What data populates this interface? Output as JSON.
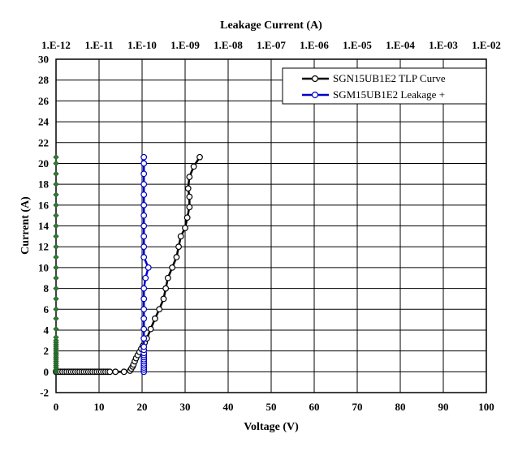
{
  "chart_data": {
    "type": "scatter",
    "xlabel": "Voltage (V)",
    "ylabel": "Current (A)",
    "x2label": "Leakage Current (A)",
    "xlim": [
      0,
      100
    ],
    "ylim": [
      -2,
      30
    ],
    "x_ticks": [
      "0",
      "10",
      "20",
      "30",
      "40",
      "50",
      "60",
      "70",
      "80",
      "90",
      "100"
    ],
    "y_ticks": [
      "-2",
      "0",
      "2",
      "4",
      "6",
      "8",
      "10",
      "12",
      "14",
      "16",
      "18",
      "20",
      "22",
      "24",
      "26",
      "28",
      "30"
    ],
    "x2_ticks": [
      "1.E-12",
      "1.E-11",
      "1.E-10",
      "1.E-09",
      "1.E-08",
      "1.E-07",
      "1.E-06",
      "1.E-05",
      "1.E-04",
      "1.E-03",
      "1.E-02"
    ],
    "x2_scale": "log",
    "x2lim": [
      1e-12,
      0.01
    ],
    "grid": true,
    "legend_position": "top-right",
    "series": [
      {
        "name": "SGN15UB1E2 TLP Curve",
        "axis": "bottom",
        "color": "#000000",
        "marker": "open-circle",
        "points": [
          [
            0,
            0
          ],
          [
            0.5,
            0
          ],
          [
            1,
            0
          ],
          [
            1.5,
            0
          ],
          [
            2,
            0
          ],
          [
            2.5,
            0
          ],
          [
            3,
            0
          ],
          [
            3.5,
            0
          ],
          [
            4,
            0
          ],
          [
            4.5,
            0
          ],
          [
            5,
            0
          ],
          [
            5.5,
            0
          ],
          [
            6,
            0
          ],
          [
            6.5,
            0
          ],
          [
            7,
            0
          ],
          [
            7.5,
            0
          ],
          [
            8,
            0
          ],
          [
            8.5,
            0
          ],
          [
            9,
            0
          ],
          [
            9.5,
            0
          ],
          [
            10,
            0
          ],
          [
            10.5,
            0
          ],
          [
            11,
            0
          ],
          [
            11.5,
            0
          ],
          [
            12,
            0
          ],
          [
            12.5,
            0
          ],
          [
            13.8,
            0
          ],
          [
            15.8,
            0
          ],
          [
            17.2,
            0.1
          ],
          [
            17.5,
            0.3
          ],
          [
            17.8,
            0.5
          ],
          [
            18,
            0.7
          ],
          [
            18.3,
            1.0
          ],
          [
            18.6,
            1.3
          ],
          [
            19,
            1.6
          ],
          [
            19.4,
            1.9
          ],
          [
            19.8,
            2.2
          ],
          [
            20.2,
            2.5
          ],
          [
            20.6,
            2.8
          ],
          [
            21.1,
            3.2
          ],
          [
            22,
            4.1
          ],
          [
            23,
            5.1
          ],
          [
            24,
            6.0
          ],
          [
            25,
            7.0
          ],
          [
            25.5,
            8.0
          ],
          [
            26,
            9.0
          ],
          [
            27,
            10.0
          ],
          [
            28,
            11.0
          ],
          [
            28.5,
            12.0
          ],
          [
            29,
            13.0
          ],
          [
            30,
            13.8
          ],
          [
            30.5,
            14.8
          ],
          [
            31,
            15.8
          ],
          [
            31,
            16.8
          ],
          [
            30.7,
            17.6
          ],
          [
            31,
            18.7
          ],
          [
            32,
            19.7
          ],
          [
            33.4,
            20.6
          ]
        ]
      },
      {
        "name": "SGM15UB1E2 Leakage +",
        "axis": "top",
        "color": "#0000cc",
        "marker": "open-circle",
        "points": [
          [
            1.1e-10,
            0.0
          ],
          [
            1.1e-10,
            0.2
          ],
          [
            1.1e-10,
            0.4
          ],
          [
            1.1e-10,
            0.6
          ],
          [
            1.1e-10,
            0.8
          ],
          [
            1.1e-10,
            1.0
          ],
          [
            1.1e-10,
            1.2
          ],
          [
            1.1e-10,
            1.4
          ],
          [
            1.1e-10,
            1.6
          ],
          [
            1.1e-10,
            1.8
          ],
          [
            1.1e-10,
            2.1
          ],
          [
            1.1e-10,
            2.4
          ],
          [
            1.1e-10,
            3.2
          ],
          [
            1.1e-10,
            4.1
          ],
          [
            1.1e-10,
            5.1
          ],
          [
            1.1e-10,
            6.0
          ],
          [
            1.1e-10,
            7.0
          ],
          [
            1.1e-10,
            8.0
          ],
          [
            1.2e-10,
            9.0
          ],
          [
            1.4e-10,
            10.0
          ],
          [
            1.1e-10,
            11.0
          ],
          [
            1.1e-10,
            12.0
          ],
          [
            1.1e-10,
            13.0
          ],
          [
            1.1e-10,
            14.0
          ],
          [
            1.1e-10,
            15.0
          ],
          [
            1.1e-10,
            16.0
          ],
          [
            1.1e-10,
            17.0
          ],
          [
            1.1e-10,
            18.0
          ],
          [
            1.1e-10,
            19.0
          ],
          [
            1.1e-10,
            20.0
          ],
          [
            1.1e-10,
            20.6
          ]
        ]
      },
      {
        "axis": "bottom",
        "color": "#2e7d32",
        "marker": "filled-diamond",
        "points": [
          [
            0,
            0
          ],
          [
            0,
            0.2
          ],
          [
            0,
            0.4
          ],
          [
            0,
            0.6
          ],
          [
            0,
            0.8
          ],
          [
            0,
            1.0
          ],
          [
            0,
            1.2
          ],
          [
            0,
            1.4
          ],
          [
            0,
            1.6
          ],
          [
            0,
            1.8
          ],
          [
            0,
            2.0
          ],
          [
            0,
            2.2
          ],
          [
            0,
            2.4
          ],
          [
            0,
            2.6
          ],
          [
            0,
            2.8
          ],
          [
            0,
            3.0
          ],
          [
            0,
            3.3
          ],
          [
            0,
            4.1
          ],
          [
            0,
            5.1
          ],
          [
            0,
            6.0
          ],
          [
            0,
            7.0
          ],
          [
            0,
            8.0
          ],
          [
            0,
            9.0
          ],
          [
            0,
            10.0
          ],
          [
            0,
            11.0
          ],
          [
            0,
            12.0
          ],
          [
            0,
            13.0
          ],
          [
            0,
            14.0
          ],
          [
            0,
            15.0
          ],
          [
            0,
            16.0
          ],
          [
            0,
            17.0
          ],
          [
            0,
            18.0
          ],
          [
            0,
            19.0
          ],
          [
            0,
            20.0
          ],
          [
            0,
            20.6
          ]
        ]
      }
    ]
  }
}
